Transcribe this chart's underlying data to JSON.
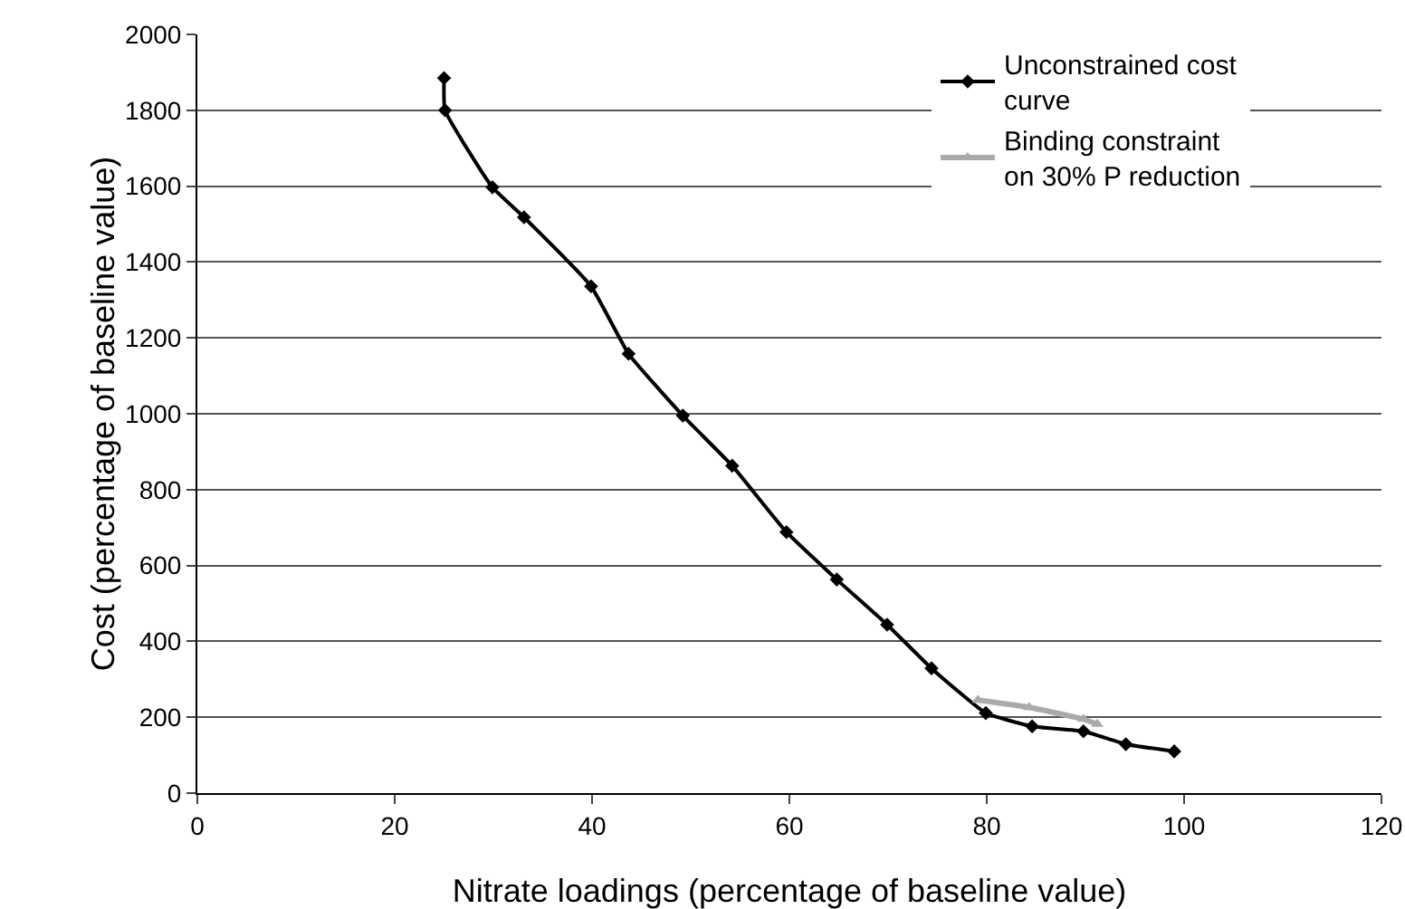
{
  "chart_data": {
    "type": "line",
    "xlabel": "Nitrate loadings (percentage of baseline value)",
    "ylabel": "Cost (percentage of baseline value)",
    "xlim": [
      0,
      120
    ],
    "xticks": [
      0,
      20,
      40,
      60,
      80,
      100,
      120
    ],
    "ylim": [
      0,
      2000
    ],
    "yticks": [
      0,
      200,
      400,
      600,
      800,
      1000,
      1200,
      1400,
      1600,
      1800,
      2000
    ],
    "grid": "y",
    "legend": "top right",
    "line_style": "solid",
    "series": [
      {
        "name": "Unconstrained cost curve",
        "color": "#000000",
        "marker": "diamond",
        "x": [
          25,
          25.1,
          29.9,
          33.1,
          39.9,
          43.7,
          49.2,
          54.2,
          59.7,
          64.8,
          69.9,
          74.4,
          79.9,
          84.6,
          89.8,
          94.1,
          99
        ],
        "values": [
          1885,
          1800,
          1597,
          1518,
          1336,
          1158,
          995,
          863,
          688,
          563,
          444,
          329,
          211,
          176,
          163,
          129,
          110
        ]
      },
      {
        "name": "Binding constraint on 30% P reduction",
        "color": "#aaaaaa",
        "marker": "triangle",
        "x": [
          79.1,
          84.3,
          89.8,
          91.2
        ],
        "values": [
          245,
          226,
          195,
          182
        ]
      }
    ]
  }
}
